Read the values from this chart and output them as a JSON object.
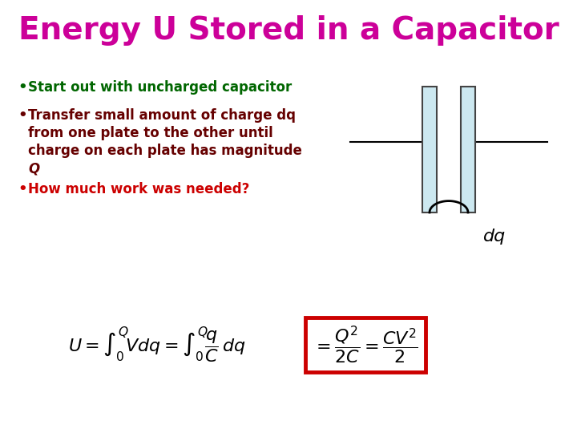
{
  "title": "Energy U Stored in a Capacitor",
  "title_color": "#CC0099",
  "title_fontsize": 28,
  "bullet1": "Start out with uncharged capacitor",
  "bullet1_color": "#006600",
  "bullet2_line1": "Transfer small amount of charge dq",
  "bullet2_line2": "from one plate to the other until",
  "bullet2_line3": "charge on each plate has magnitude",
  "bullet2_line4": "Q",
  "bullet2_color": "#660000",
  "bullet3": "How much work was needed?",
  "bullet3_color": "#CC0000",
  "formula_color": "#000000",
  "box_color": "#CC0000",
  "bg_color": "#ffffff",
  "dq_label": "dq",
  "dq_color": "#000000",
  "plate_fill": "#cce8f0",
  "bullet_fontsize": 12,
  "formula_fontsize": 16
}
